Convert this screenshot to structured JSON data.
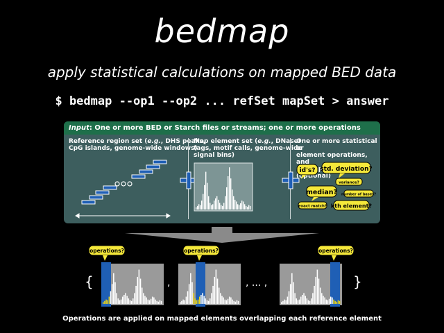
{
  "slide": {
    "title": "bedmap",
    "subtitle": "apply statistical calculations on mapped BED data",
    "command": "$ bedmap --op1 --op2 ... refSet mapSet > answer"
  },
  "panel": {
    "header_label": "Input",
    "header_text": ": One or more BED or Starch files or streams; one or more operations",
    "col1_line1_pre": "Reference region set (",
    "col1_line1_eg": "e.g.",
    "col1_line1_post": ", DHS peaks,",
    "col1_line2": "CpG islands, genome-wide windows)",
    "col2_line1_pre": "Map element set (",
    "col2_line1_eg": "e.g.",
    "col2_line1_post": ", DNaseI",
    "col2_line2": "tags, motif calls, genome-wide",
    "col2_line3": "signal bins)",
    "col3_line1": "One or more statistical or",
    "col3_line2": "element operations, and",
    "col3_line3": "overlap criteria (optional)",
    "bubbles": [
      "id's?",
      "std. deviation?",
      "variance?",
      "median?",
      "number of bases?",
      "exact match?",
      "kth element?"
    ]
  },
  "bottom": {
    "open_brace": "{",
    "close_brace": "}",
    "sep1": ",",
    "sep2": ", ... ,",
    "bubble_label": "operations?",
    "caption": "Operations are applied on mapped elements overlapping each reference element"
  },
  "colors": {
    "panel_bg": "#3d5e5e",
    "header_bg": "#1e6f4a",
    "blue": "#1f5fb5",
    "bubble": "#f5e83a",
    "highlight": "#e8d21a"
  }
}
